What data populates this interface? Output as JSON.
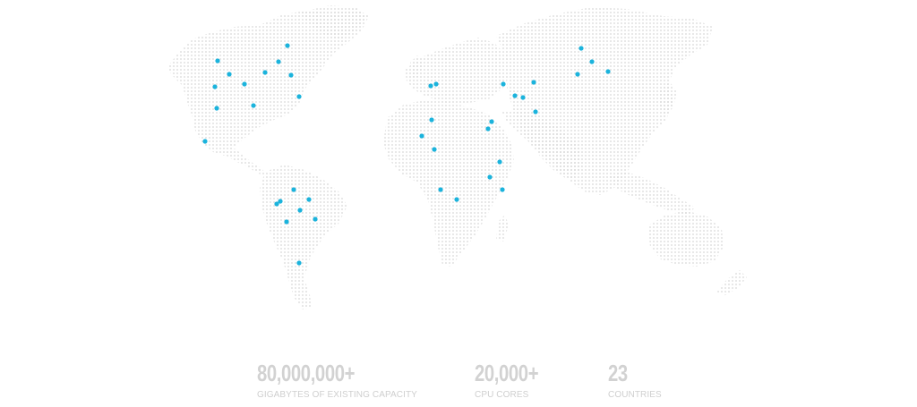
{
  "map": {
    "land_dot_color": "#d4d4d4",
    "marker_color": "#1bb3dc",
    "markers": [
      {
        "region": "north-america"
      },
      {
        "region": "north-america"
      },
      {
        "region": "north-america"
      },
      {
        "region": "north-america"
      },
      {
        "region": "north-america"
      },
      {
        "region": "north-america"
      },
      {
        "region": "north-america"
      },
      {
        "region": "north-america"
      },
      {
        "region": "north-america"
      },
      {
        "region": "north-america"
      },
      {
        "region": "north-america"
      },
      {
        "region": "north-america"
      },
      {
        "region": "south-america"
      },
      {
        "region": "south-america"
      },
      {
        "region": "south-america"
      },
      {
        "region": "south-america"
      },
      {
        "region": "south-america"
      },
      {
        "region": "south-america"
      },
      {
        "region": "south-america"
      },
      {
        "region": "south-america"
      },
      {
        "region": "europe"
      },
      {
        "region": "europe"
      },
      {
        "region": "africa"
      },
      {
        "region": "africa"
      },
      {
        "region": "africa"
      },
      {
        "region": "africa"
      },
      {
        "region": "africa"
      },
      {
        "region": "africa"
      },
      {
        "region": "africa"
      },
      {
        "region": "africa"
      },
      {
        "region": "africa"
      },
      {
        "region": "africa"
      },
      {
        "region": "asia"
      },
      {
        "region": "asia"
      },
      {
        "region": "asia"
      },
      {
        "region": "asia"
      },
      {
        "region": "asia"
      },
      {
        "region": "asia"
      },
      {
        "region": "asia"
      },
      {
        "region": "asia"
      },
      {
        "region": "asia"
      }
    ]
  },
  "stats": [
    {
      "value": "80,000,000+",
      "label": "GIGABYTES OF EXISTING CAPACITY"
    },
    {
      "value": "20,000+",
      "label": "CPU CORES"
    },
    {
      "value": "23",
      "label": "COUNTRIES"
    }
  ]
}
